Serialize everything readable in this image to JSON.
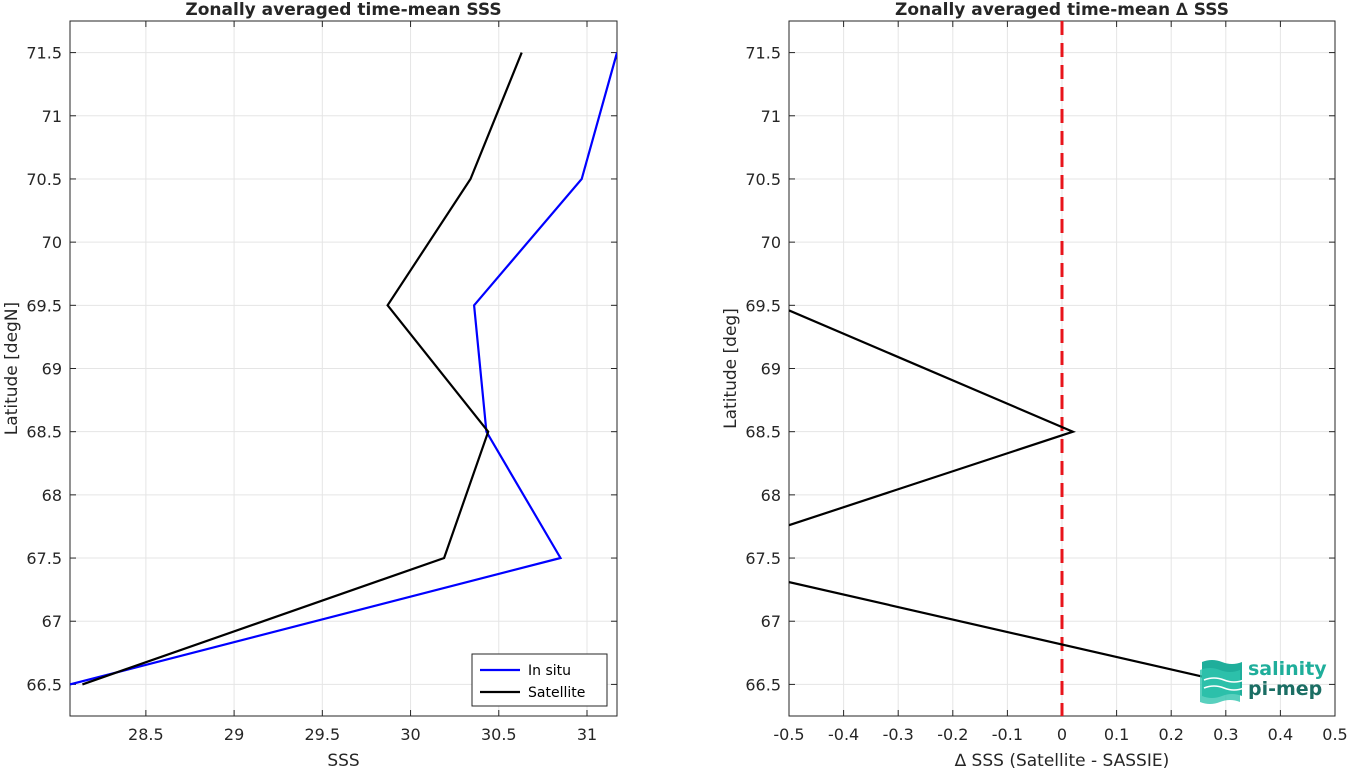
{
  "chart_data": [
    {
      "type": "line",
      "title": "Zonally averaged time-mean SSS",
      "xlabel": "SSS",
      "ylabel": "Latitude [degN]",
      "xlim": [
        28.07,
        31.17
      ],
      "ylim": [
        66.25,
        71.75
      ],
      "xticks": [
        "28.5",
        "29",
        "29.5",
        "30",
        "30.5",
        "31"
      ],
      "yticks": [
        "66.5",
        "67",
        "67.5",
        "68",
        "68.5",
        "69",
        "69.5",
        "70",
        "70.5",
        "71",
        "71.5"
      ],
      "grid": true,
      "legend_position": "bottom-right",
      "series": [
        {
          "name": "In situ",
          "color": "#0000ff",
          "x": [
            28.07,
            30.85,
            30.43,
            30.36,
            30.97,
            31.17
          ],
          "y": [
            66.5,
            67.5,
            68.5,
            69.5,
            70.5,
            71.5
          ]
        },
        {
          "name": "Satellite",
          "color": "#000000",
          "x": [
            28.14,
            30.19,
            30.44,
            29.87,
            30.34,
            30.63
          ],
          "y": [
            66.5,
            67.5,
            68.5,
            69.5,
            70.5,
            71.5
          ]
        }
      ]
    },
    {
      "type": "line",
      "title": "Zonally averaged time-mean ∆ SSS",
      "xlabel": "∆ SSS (Satellite - SASSIE)",
      "ylabel": "Latitude [deg]",
      "xlim": [
        -0.5,
        0.5
      ],
      "ylim": [
        66.25,
        71.75
      ],
      "xticks": [
        "-0.5",
        "-0.4",
        "-0.3",
        "-0.2",
        "-0.1",
        "0",
        "0.1",
        "0.2",
        "0.3",
        "0.4",
        "0.5"
      ],
      "yticks": [
        "66.5",
        "67",
        "67.5",
        "68",
        "68.5",
        "69",
        "69.5",
        "70",
        "70.5",
        "71",
        "71.5"
      ],
      "grid": true,
      "zero_line": {
        "x": 0,
        "color": "#e8141b",
        "style": "dashed"
      },
      "series": [
        {
          "color": "#000000",
          "x": [
            0.32,
            -0.5
          ],
          "y": [
            66.5,
            67.31
          ]
        },
        {
          "color": "#000000",
          "x": [
            -0.5,
            0.02,
            -0.5
          ],
          "y": [
            67.76,
            68.5,
            69.46
          ]
        }
      ]
    }
  ],
  "logo": {
    "line1": "salinity",
    "line2": "pi-mep"
  }
}
